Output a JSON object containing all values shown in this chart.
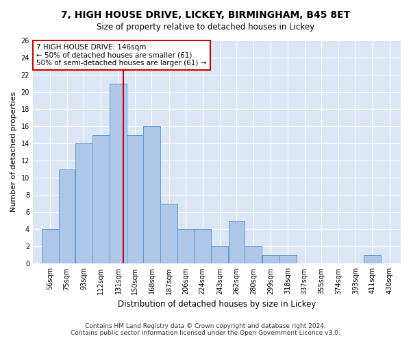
{
  "title": "7, HIGH HOUSE DRIVE, LICKEY, BIRMINGHAM, B45 8ET",
  "subtitle": "Size of property relative to detached houses in Lickey",
  "xlabel": "Distribution of detached houses by size in Lickey",
  "ylabel": "Number of detached properties",
  "bin_labels": [
    "56sqm",
    "75sqm",
    "93sqm",
    "112sqm",
    "131sqm",
    "150sqm",
    "168sqm",
    "187sqm",
    "206sqm",
    "224sqm",
    "243sqm",
    "262sqm",
    "280sqm",
    "299sqm",
    "318sqm",
    "337sqm",
    "355sqm",
    "374sqm",
    "393sqm",
    "411sqm",
    "430sqm"
  ],
  "bar_heights": [
    4,
    11,
    14,
    15,
    21,
    15,
    16,
    7,
    4,
    4,
    2,
    5,
    2,
    1,
    1,
    0,
    0,
    0,
    0,
    1,
    0
  ],
  "bar_color": "#aec6e8",
  "bar_edge_color": "#5b9bd5",
  "red_line_x": 146,
  "bin_edges": [
    56,
    75,
    93,
    112,
    131,
    150,
    168,
    187,
    206,
    224,
    243,
    262,
    280,
    299,
    318,
    337,
    355,
    374,
    393,
    411,
    430
  ],
  "annotation_box_text": "7 HIGH HOUSE DRIVE: 146sqm\n← 50% of detached houses are smaller (61)\n50% of semi-detached houses are larger (61) →",
  "annotation_box_color": "#cc0000",
  "background_color": "#dce6f5",
  "grid_color": "#ffffff",
  "ylim": [
    0,
    26
  ],
  "yticks": [
    0,
    2,
    4,
    6,
    8,
    10,
    12,
    14,
    16,
    18,
    20,
    22,
    24,
    26
  ],
  "footer": "Contains HM Land Registry data © Crown copyright and database right 2024.\nContains public sector information licensed under the Open Government Licence v3.0."
}
